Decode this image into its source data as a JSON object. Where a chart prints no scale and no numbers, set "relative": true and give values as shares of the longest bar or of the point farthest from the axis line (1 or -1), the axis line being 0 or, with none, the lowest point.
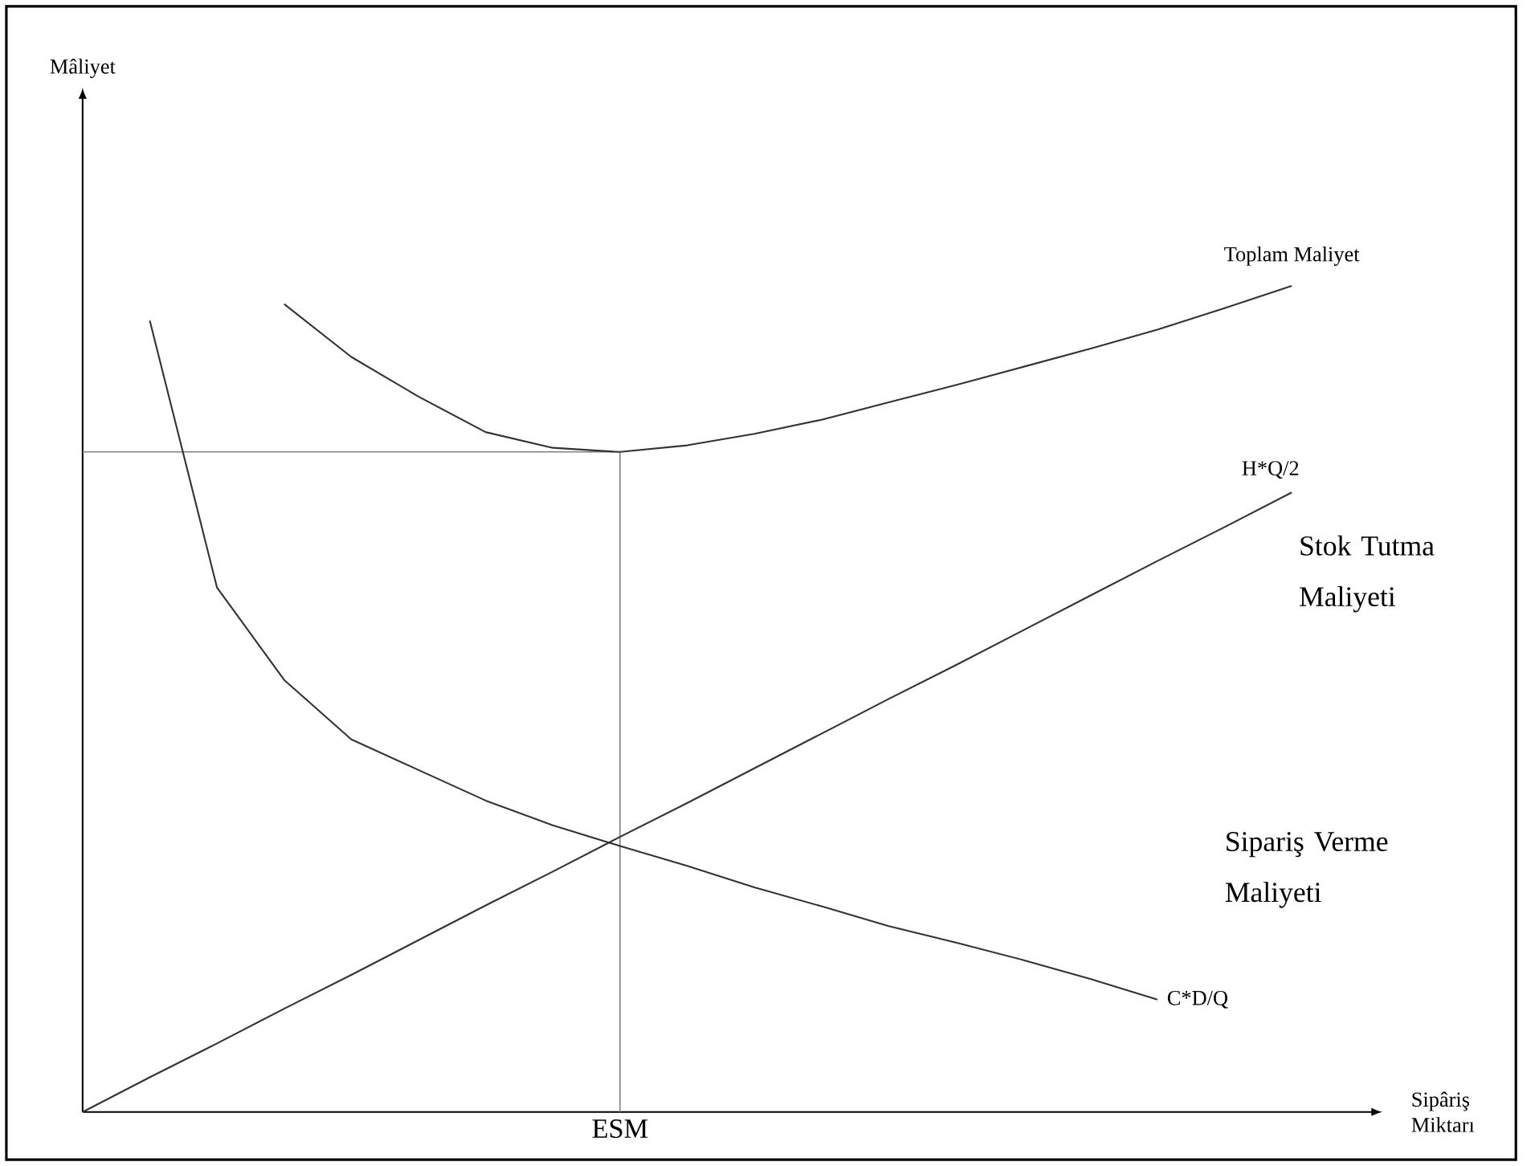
{
  "chart_data": {
    "type": "line",
    "relative": true,
    "xlabel": "Sipâriş Miktarı",
    "categories": [
      null,
      null,
      null,
      null,
      null,
      null,
      null,
      null,
      null,
      null,
      null,
      null,
      null,
      null,
      null,
      null,
      null,
      null,
      null
    ],
    "series": [
      {
        "name": "Toplam Maliyet",
        "color": "#333333",
        "values": [
          null,
          null,
          null,
          0.978,
          0.914,
          0.866,
          0.823,
          0.804,
          0.799,
          0.807,
          0.821,
          0.838,
          0.859,
          0.88,
          0.902,
          0.924,
          0.947,
          0.973,
          1.0
        ]
      },
      {
        "name": "H*Q/2",
        "color": "#333333",
        "values": [
          0,
          0.042,
          0.083,
          0.125,
          0.166,
          0.208,
          0.25,
          0.291,
          0.333,
          0.374,
          0.416,
          0.458,
          0.5,
          0.541,
          0.583,
          0.625,
          0.667,
          0.708,
          0.75
        ]
      },
      {
        "name": "C*D/Q",
        "color": "#333333",
        "values": [
          null,
          0.958,
          0.635,
          0.523,
          0.451,
          0.414,
          0.377,
          0.347,
          0.322,
          0.298,
          0.272,
          0.249,
          0.225,
          0.205,
          0.184,
          0.161,
          0.136,
          null,
          null
        ]
      }
    ],
    "annotations": [
      "ESM",
      "Stok Tutma Maliyeti",
      "Sipariş Verme Maliyeti",
      "Mâliyet"
    ]
  }
}
